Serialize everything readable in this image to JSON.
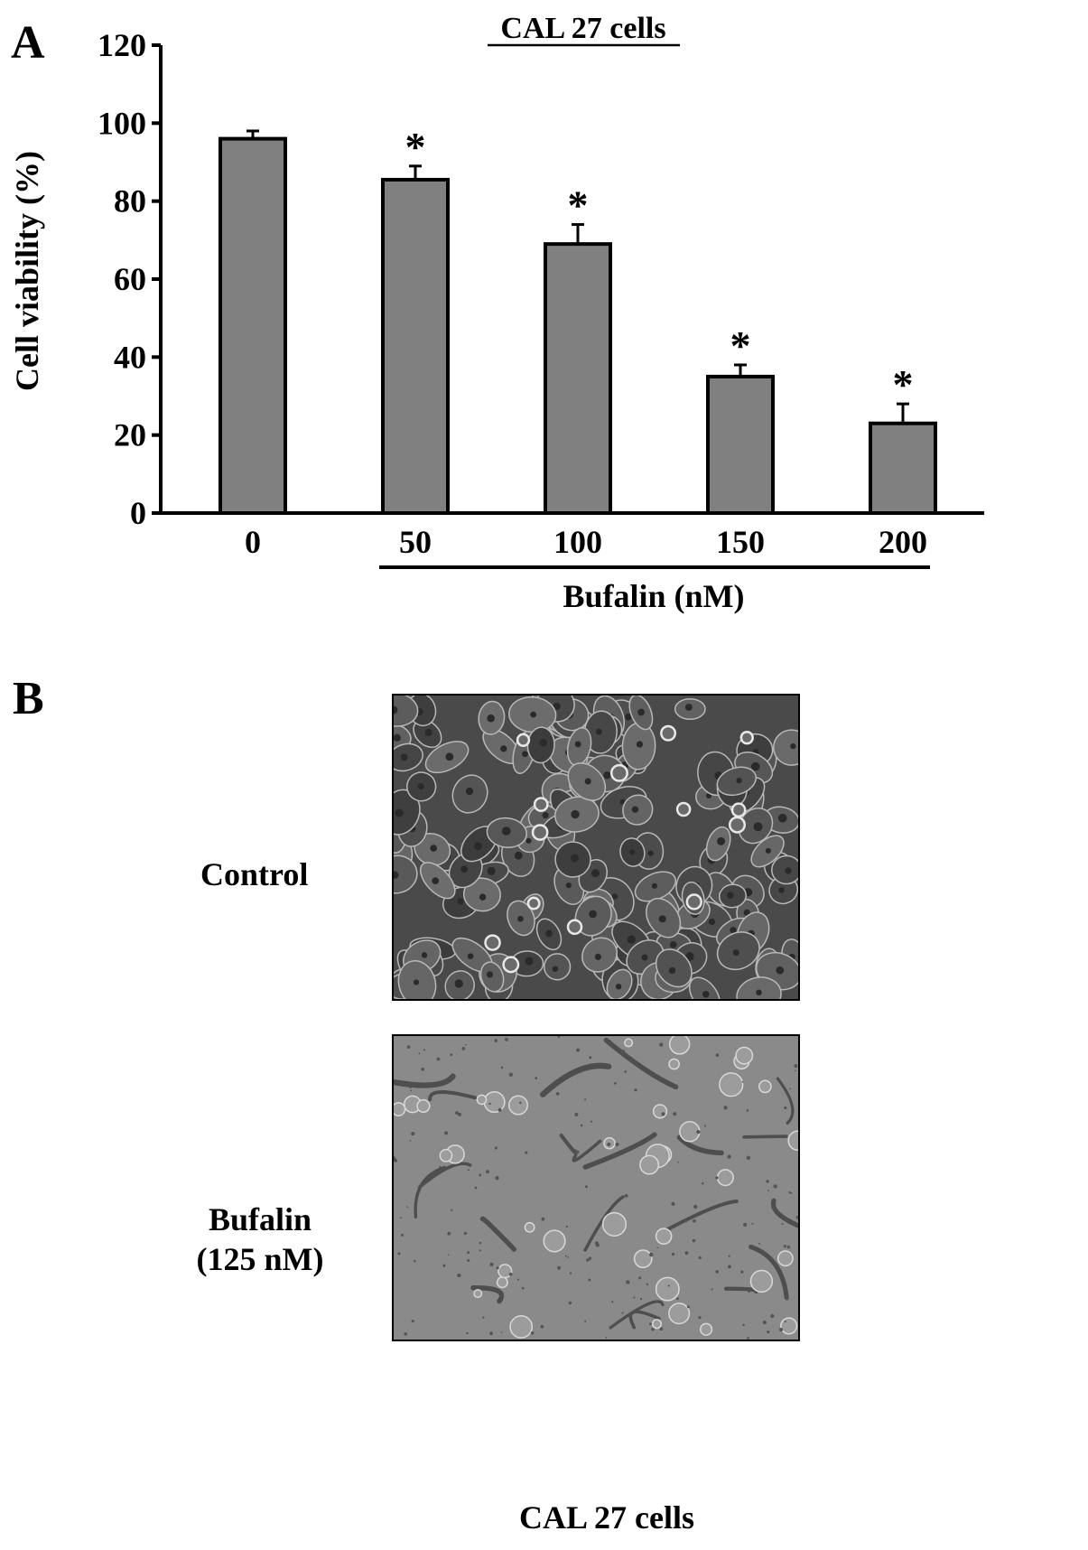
{
  "figure": {
    "panel_a_label": "A",
    "panel_b_label": "B",
    "panel_b_caption": "CAL 27 cells",
    "micrographs": [
      {
        "label_lines": [
          "Control"
        ],
        "appearance": "dense confluent cell monolayer"
      },
      {
        "label_lines": [
          "Bufalin",
          "(125 nM)"
        ],
        "appearance": "sparse rounded and detached cells"
      }
    ]
  },
  "chart_data": {
    "type": "bar",
    "title": "CAL 27 cells",
    "ylabel": "Cell viability (%)",
    "xlabel": "Bufalin (nM)",
    "ylim": [
      0,
      120
    ],
    "yticks": [
      0,
      20,
      40,
      60,
      80,
      100,
      120
    ],
    "grid": false,
    "categories": [
      "0",
      "50",
      "100",
      "150",
      "200"
    ],
    "values": [
      96,
      85.5,
      69,
      35,
      23
    ],
    "errors": [
      2,
      3.5,
      5,
      3,
      5
    ],
    "significance": [
      "",
      "*",
      "*",
      "*",
      "*"
    ],
    "bar_color": "#808080",
    "bracket_categories": [
      "50",
      "200"
    ]
  }
}
